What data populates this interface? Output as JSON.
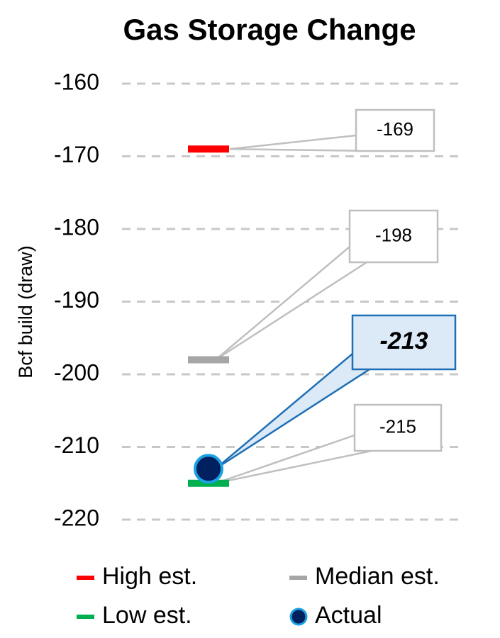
{
  "chart_data": {
    "type": "marker",
    "title": "Gas Storage Change",
    "y_label": "Bcf build (draw)",
    "ylim": [
      -220,
      -160
    ],
    "yticks": [
      -160,
      -170,
      -180,
      -190,
      -200,
      -210,
      -220
    ],
    "grid": true,
    "series": [
      {
        "name": "High est.",
        "color": "#ff0000",
        "marker": "dash",
        "values": [
          -169
        ]
      },
      {
        "name": "Median est.",
        "color": "#a6a6a6",
        "marker": "dash",
        "values": [
          -198
        ]
      },
      {
        "name": "Low est.",
        "color": "#00b050",
        "marker": "dash",
        "values": [
          -215
        ]
      },
      {
        "name": "Actual",
        "color": "#002060",
        "edgecolor": "#1ba1e2",
        "marker": "circle",
        "values": [
          -213
        ]
      }
    ]
  }
}
